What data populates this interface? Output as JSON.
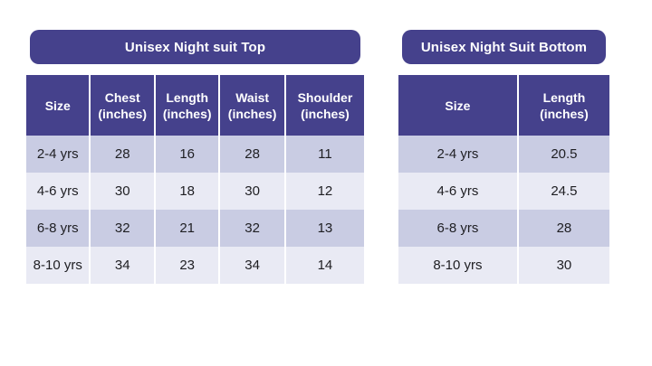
{
  "colors": {
    "header_bg": "#45418C",
    "row_dark": "#C9CCE3",
    "row_light": "#E9EAF4",
    "title_text": "#ffffff",
    "body_text": "#1E1E22",
    "page_bg": "#ffffff"
  },
  "chart_data": [
    {
      "type": "table",
      "title": "Unisex Night suit Top",
      "columns": [
        "Size",
        "Chest (inches)",
        "Length (inches)",
        "Waist (inches)",
        "Shoulder (inches)"
      ],
      "columns_lines": [
        [
          "Size"
        ],
        [
          "Chest",
          "(inches)"
        ],
        [
          "Length",
          "(inches)"
        ],
        [
          "Waist",
          "(inches)"
        ],
        [
          "Shoulder",
          "(inches)"
        ]
      ],
      "rows": [
        [
          "2-4 yrs",
          "28",
          "16",
          "28",
          "11"
        ],
        [
          "4-6 yrs",
          "30",
          "18",
          "30",
          "12"
        ],
        [
          "6-8 yrs",
          "32",
          "21",
          "32",
          "13"
        ],
        [
          "8-10 yrs",
          "34",
          "23",
          "34",
          "14"
        ]
      ]
    },
    {
      "type": "table",
      "title": "Unisex Night Suit Bottom",
      "columns": [
        "Size",
        "Length (inches)"
      ],
      "columns_lines": [
        [
          "Size"
        ],
        [
          "Length",
          "(inches)"
        ]
      ],
      "rows": [
        [
          "2-4 yrs",
          "20.5"
        ],
        [
          "4-6 yrs",
          "24.5"
        ],
        [
          "6-8 yrs",
          "28"
        ],
        [
          "8-10 yrs",
          "30"
        ]
      ]
    }
  ]
}
